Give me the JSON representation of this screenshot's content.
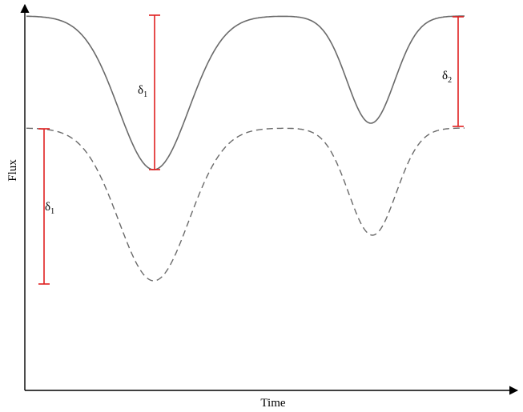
{
  "axes": {
    "xlabel": "Time",
    "ylabel": "Flux"
  },
  "curves": [
    {
      "id": "primary-light-curve",
      "style": "solid",
      "color": "#6a6a6a"
    },
    {
      "id": "secondary-light-curve",
      "style": "dashed",
      "color": "#6a6a6a"
    }
  ],
  "markers": {
    "color": "#e02020",
    "items": [
      {
        "id": "delta-1-upper",
        "symbol": "δ",
        "subscript": "1"
      },
      {
        "id": "delta-2",
        "symbol": "δ",
        "subscript": "2"
      },
      {
        "id": "delta-1-lower",
        "symbol": "δ",
        "subscript": "1"
      }
    ]
  }
}
